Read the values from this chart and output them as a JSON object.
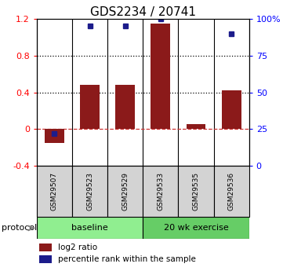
{
  "title": "GDS2234 / 20741",
  "samples": [
    "GSM29507",
    "GSM29523",
    "GSM29529",
    "GSM29533",
    "GSM29535",
    "GSM29536"
  ],
  "log2_ratio": [
    -0.15,
    0.48,
    0.48,
    1.15,
    0.05,
    0.42
  ],
  "percentile_rank_pct": [
    22,
    95,
    95,
    100,
    0,
    90
  ],
  "show_dot": [
    true,
    true,
    true,
    true,
    false,
    true
  ],
  "bar_color": "#8B1A1A",
  "dot_color": "#1C1C8B",
  "ylim_left": [
    -0.4,
    1.2
  ],
  "ylim_right": [
    0,
    100
  ],
  "yticks_left": [
    -0.4,
    0.0,
    0.4,
    0.8,
    1.2
  ],
  "ytick_labels_left": [
    "-0.4",
    "0",
    "0.4",
    "0.8",
    "1.2"
  ],
  "yticks_right": [
    0,
    25,
    50,
    75,
    100
  ],
  "ytick_labels_right": [
    "0",
    "25",
    "50",
    "75",
    "100%"
  ],
  "hlines": [
    0.4,
    0.8
  ],
  "baseline_count": 3,
  "exercise_count": 3,
  "baseline_color": "#90EE90",
  "exercise_color": "#66CD66",
  "title_fontsize": 11,
  "tick_fontsize": 8,
  "sample_fontsize": 6.5,
  "legend_bar_label": "log2 ratio",
  "legend_dot_label": "percentile rank within the sample",
  "protocol_label": "protocol",
  "group_label_baseline": "baseline",
  "group_label_exercise": "20 wk exercise"
}
